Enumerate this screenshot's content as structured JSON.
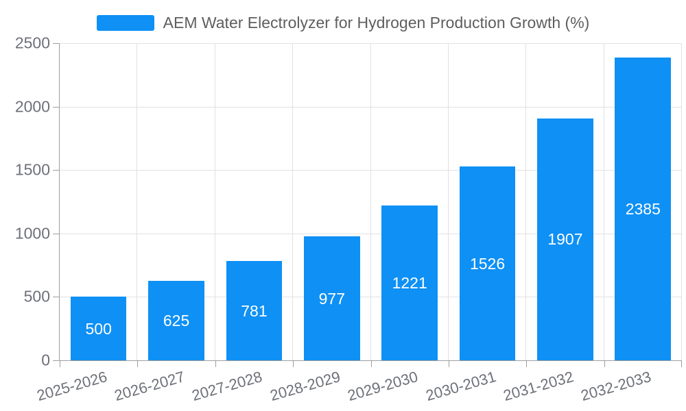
{
  "chart_data": {
    "type": "bar",
    "title": "AEM Water Electrolyzer for Hydrogen Production Growth (%)",
    "categories": [
      "2025-2026",
      "2026-2027",
      "2027-2028",
      "2028-2029",
      "2029-2030",
      "2030-2031",
      "2031-2032",
      "2032-2033"
    ],
    "values": [
      500,
      625,
      781,
      977,
      1221,
      1526,
      1907,
      2385
    ],
    "xlabel": "",
    "ylabel": "",
    "ylim": [
      0,
      2500
    ],
    "yticks": [
      0,
      500,
      1000,
      1500,
      2000,
      2500
    ],
    "grid": true,
    "legend_position": "top",
    "x_label_rotation": -16,
    "bar_labels_inside": true
  },
  "style": {
    "bar_color": "#0E90F5",
    "grid_color": "#E1E1E1",
    "axis_color": "#9E9E9E",
    "axis_label_color": "#6E7079",
    "legend_text_color": "#5E5E5E",
    "bar_label_color": "#FFFFFF",
    "background": "#FFFFFF"
  }
}
